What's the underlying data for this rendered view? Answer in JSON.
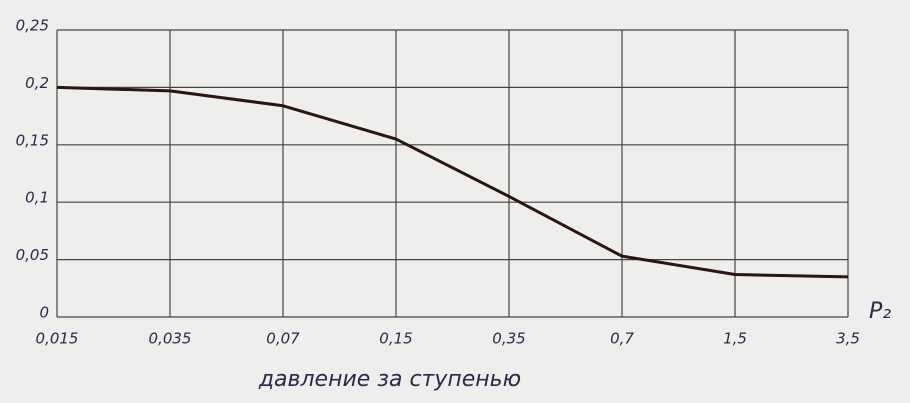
{
  "chart_data": {
    "type": "line",
    "categories": [
      "0,015",
      "0,035",
      "0,07",
      "0,15",
      "0,35",
      "0,7",
      "1,5",
      "3,5"
    ],
    "values": [
      0.2,
      0.197,
      0.184,
      0.155,
      0.105,
      0.053,
      0.037,
      0.035
    ],
    "color": "#2a1414",
    "ylim": [
      0,
      0.25
    ],
    "yticks": [
      0,
      {
        "value": 0.05,
        "label": "0,05"
      },
      {
        "value": 0.1,
        "label": "0,1"
      },
      {
        "value": 0.15,
        "label": "0,15"
      },
      {
        "value": 0.2,
        "label": "0,2"
      },
      {
        "value": 0.25,
        "label": "0,25"
      }
    ],
    "x_label": "давление за ступенью",
    "x_axis_symbol": "P₂",
    "grid": true
  }
}
